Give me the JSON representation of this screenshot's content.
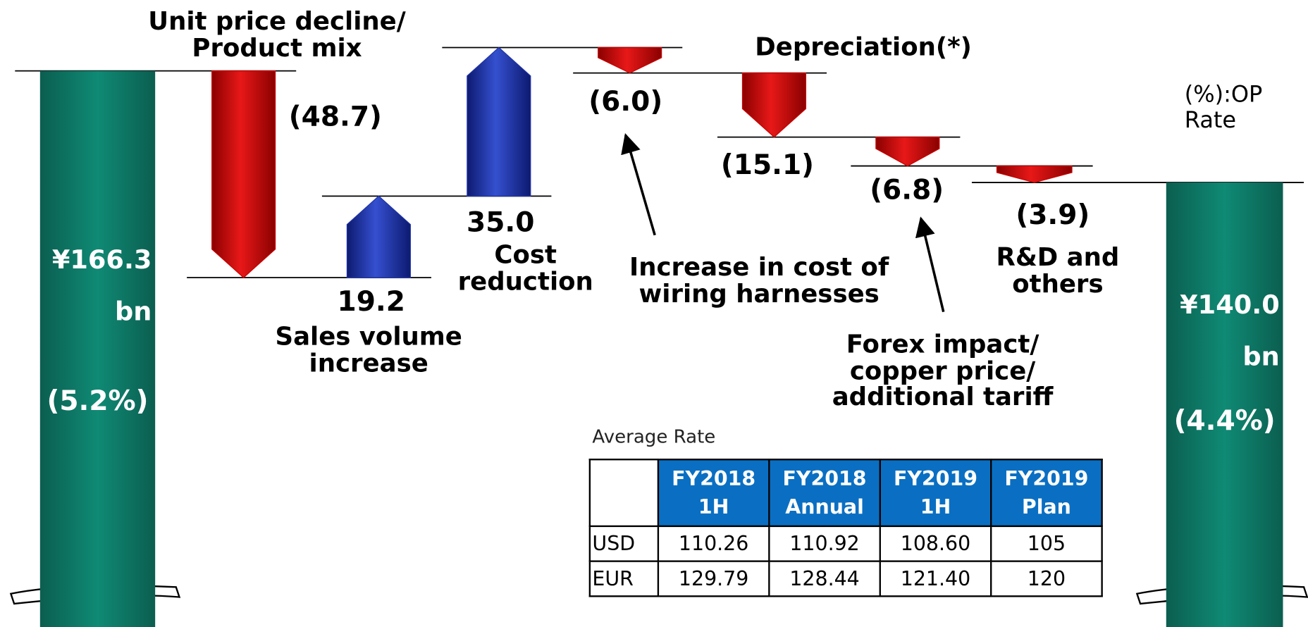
{
  "chart_data": {
    "type": "waterfall",
    "categories": [
      null,
      "Unit price decline/\nProduct mix",
      "Sales volume\nincrease",
      "Cost\nreduction",
      "Increase in cost of\nwiring harnesses",
      "Depreciation(*)",
      "Forex impact/\ncopper price/\nadditional tariff",
      "R&D and\nothers",
      null
    ],
    "values": [
      166.3,
      -48.7,
      19.2,
      35.0,
      -6.0,
      -15.1,
      -6.8,
      -3.9,
      140.0
    ],
    "value_labels": [
      "¥166.3\nbn",
      "(48.7)",
      "19.2",
      "35.0",
      "(6.0)",
      "(15.1)",
      "(6.8)",
      "(3.9)",
      "¥140.0\nbn"
    ],
    "op_rate_labels": [
      "(5.2%)",
      null,
      null,
      null,
      null,
      null,
      null,
      null,
      "(4.4%)"
    ],
    "total_color": "#0b7261",
    "increase_color": "#1f33a8",
    "decrease_color": "#cc0000",
    "note": "(%):OP Rate"
  },
  "table": {
    "title": "Average Rate",
    "header": [
      null,
      "FY2018\n1H",
      "FY2018\nAnnual",
      "FY2019\n1H",
      "FY2019\nPlan"
    ],
    "rows": [
      [
        "USD",
        "110.26",
        "110.92",
        "108.60",
        "105"
      ],
      [
        "EUR",
        "129.79",
        "128.44",
        "121.40",
        "120"
      ]
    ]
  }
}
